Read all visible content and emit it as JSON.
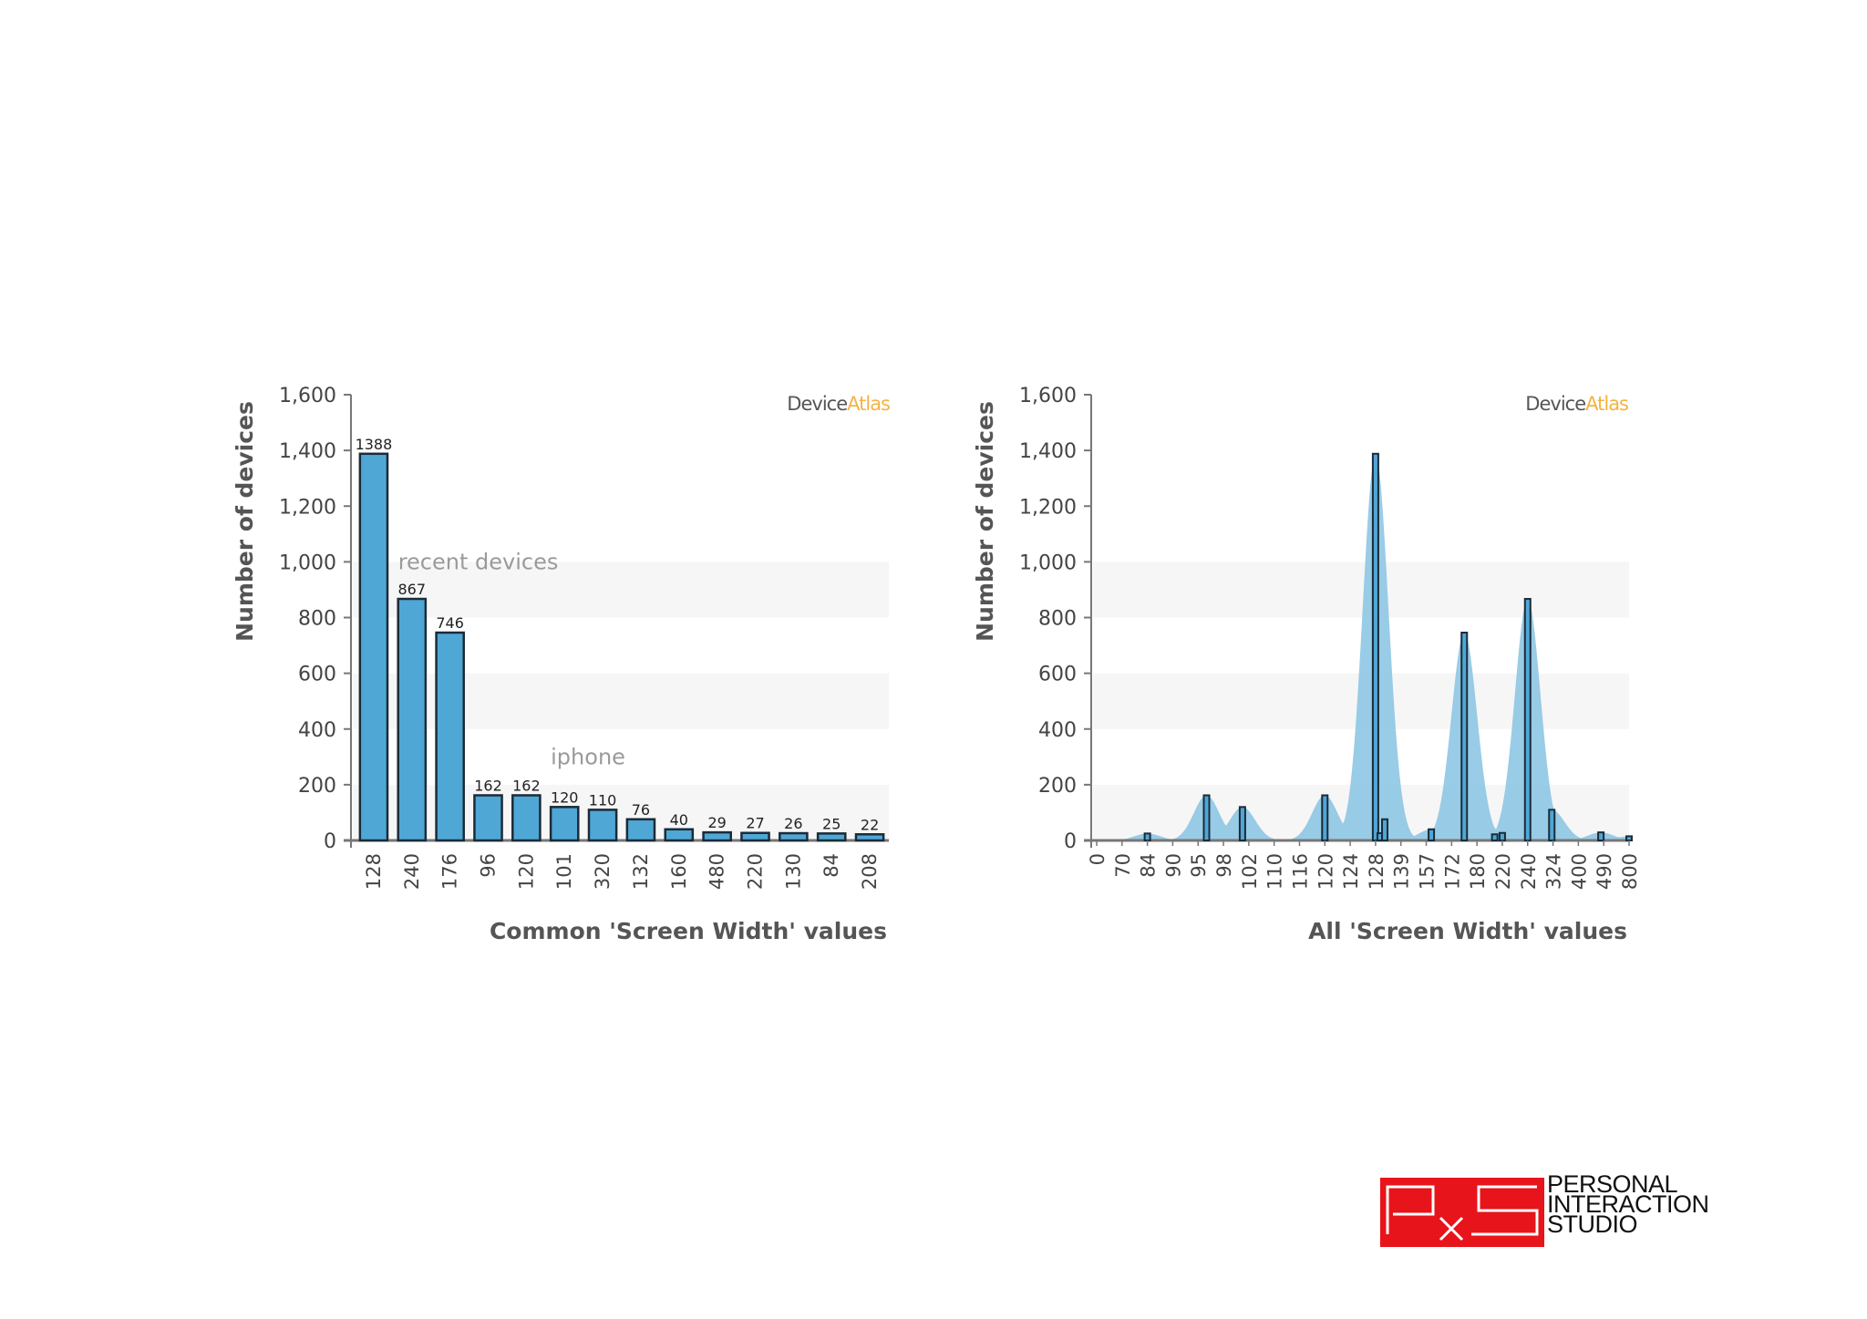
{
  "logo": {
    "line1": "PERSONAL",
    "line2": "INTERACTION",
    "line3": "STUDIO",
    "mark": "PxS",
    "color": "#e8141b"
  },
  "chart_data": [
    {
      "type": "bar",
      "ylabel": "Number of devices",
      "xlabel": "Common 'Screen Width' values",
      "watermark": {
        "part1": "Device",
        "part2": "Atlas"
      },
      "ylim": [
        0,
        1600
      ],
      "yticks": [
        "0",
        "200",
        "400",
        "600",
        "800",
        "1,000",
        "1,200",
        "1,400",
        "1,600"
      ],
      "bands": [
        [
          0,
          200
        ],
        [
          400,
          600
        ],
        [
          800,
          1000
        ]
      ],
      "categories": [
        "128",
        "240",
        "176",
        "96",
        "120",
        "101",
        "320",
        "132",
        "160",
        "480",
        "220",
        "130",
        "84",
        "208"
      ],
      "values": [
        1388,
        867,
        746,
        162,
        162,
        120,
        110,
        76,
        40,
        29,
        27,
        26,
        25,
        22
      ],
      "annotations": [
        {
          "text": "recent devices",
          "category_index": 1,
          "y": 1000
        },
        {
          "text": "iphone",
          "category_index": 5,
          "y": 300
        }
      ],
      "color": "#4fa7d6",
      "grid": false
    },
    {
      "type": "bar",
      "ylabel": "Number of devices",
      "xlabel": "All 'Screen Width' values",
      "watermark": {
        "part1": "Device",
        "part2": "Atlas"
      },
      "ylim": [
        0,
        1600
      ],
      "yticks": [
        "0",
        "200",
        "400",
        "600",
        "800",
        "1,000",
        "1,200",
        "1,400",
        "1,600"
      ],
      "bands": [
        [
          0,
          200
        ],
        [
          400,
          600
        ],
        [
          800,
          1000
        ]
      ],
      "tick_labels": [
        "0",
        "70",
        "84",
        "90",
        "95",
        "98",
        "102",
        "110",
        "116",
        "120",
        "124",
        "128",
        "139",
        "157",
        "172",
        "180",
        "220",
        "240",
        "324",
        "400",
        "490",
        "800"
      ],
      "bars": [
        {
          "x": 84,
          "value": 25
        },
        {
          "x": 96,
          "value": 162
        },
        {
          "x": 101,
          "value": 120
        },
        {
          "x": 120,
          "value": 162
        },
        {
          "x": 128,
          "value": 1388
        },
        {
          "x": 130,
          "value": 26
        },
        {
          "x": 132,
          "value": 76
        },
        {
          "x": 160,
          "value": 40
        },
        {
          "x": 176,
          "value": 746
        },
        {
          "x": 208,
          "value": 22
        },
        {
          "x": 220,
          "value": 27
        },
        {
          "x": 240,
          "value": 867
        },
        {
          "x": 320,
          "value": 110
        },
        {
          "x": 480,
          "value": 29
        },
        {
          "x": 800,
          "value": 15
        }
      ],
      "area_color": "#8ec7e3",
      "bar_color": "#4fa7d6",
      "grid": false
    }
  ]
}
